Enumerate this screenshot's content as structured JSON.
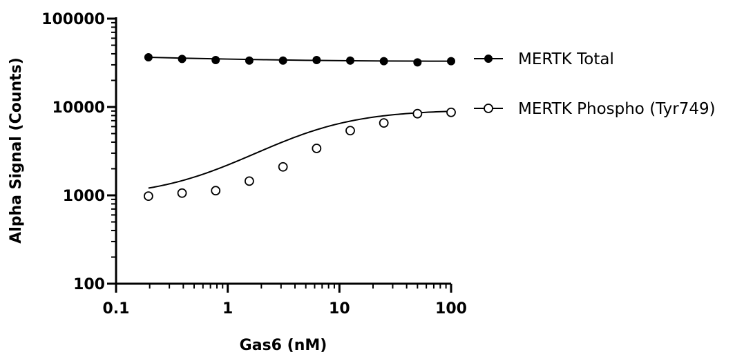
{
  "chart_data": {
    "type": "scatter",
    "xlabel": "Gas6 (nM)",
    "ylabel": "Alpha Signal (Counts)",
    "xscale": "log",
    "yscale": "log",
    "xlim": [
      0.1,
      100
    ],
    "ylim": [
      100,
      100000
    ],
    "x_ticks": [
      "0.1",
      "1",
      "10",
      "100"
    ],
    "y_ticks": [
      "100",
      "1000",
      "10000",
      "100000"
    ],
    "grid": false,
    "legend_position": "right",
    "x": [
      0.195,
      0.39,
      0.78,
      1.56,
      3.125,
      6.25,
      12.5,
      25,
      50,
      100
    ],
    "series": [
      {
        "name": "MERTK Total",
        "marker": "filled-circle",
        "color": "#000000",
        "values": [
          36500,
          35000,
          34000,
          33500,
          33500,
          34000,
          33500,
          33000,
          32000,
          33000
        ]
      },
      {
        "name": "MERTK Phospho (Tyr749)",
        "marker": "open-circle",
        "color": "#000000",
        "values": [
          980,
          1060,
          1130,
          1450,
          2100,
          3400,
          5400,
          6600,
          8400,
          8700
        ]
      }
    ]
  }
}
